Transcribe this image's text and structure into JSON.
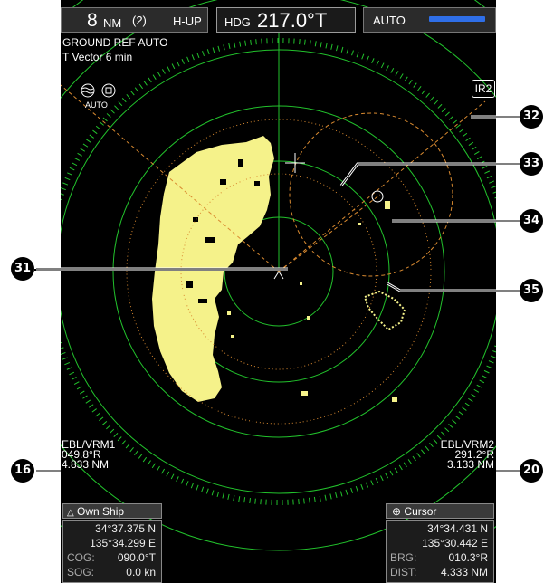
{
  "range": {
    "value": "8",
    "unit": "NM",
    "ring_count": "(2)",
    "mode": "H-UP"
  },
  "heading": {
    "label": "HDG",
    "value": "217.0°T"
  },
  "gain": {
    "label": "AUTO",
    "level": 1.0
  },
  "status": {
    "line1": "GROUND REF AUTO",
    "line2": "T Vector 6 min"
  },
  "sea_mode_label": "AUTO",
  "ir_label": "IR2",
  "ebl_left": {
    "title": "EBL/VRM1",
    "bearing": "049.8°R",
    "distance": "4.833 NM"
  },
  "ebl_right": {
    "title": "EBL/VRM2",
    "bearing": "291.2°R",
    "distance": "3.133 NM"
  },
  "own_ship": {
    "title": "Own Ship",
    "lat": "34°37.375 N",
    "lon": "135°34.299 E",
    "cog_label": "COG:",
    "cog": "090.0°T",
    "sog_label": "SOG:",
    "sog": "0.0 kn"
  },
  "cursor": {
    "title": "Cursor",
    "lat": "34°34.431 N",
    "lon": "135°30.442 E",
    "brg_label": "BRG:",
    "brg": "010.3°R",
    "dist_label": "DIST:",
    "dist": "4.333 NM"
  },
  "callouts": {
    "c31": "31",
    "c32": "32",
    "c33": "33",
    "c34": "34",
    "c35": "35",
    "c16": "16",
    "c20": "20"
  },
  "colors": {
    "rings": "#22c22c",
    "echo": "#f5f28a",
    "ebl": "#d98a30",
    "bar": "#2f6fe8",
    "background": "#000000"
  },
  "icons": [
    "sea-clutter-icon",
    "cursor-crosshair-icon",
    "own-ship-triangle-icon",
    "cursor-target-icon"
  ]
}
